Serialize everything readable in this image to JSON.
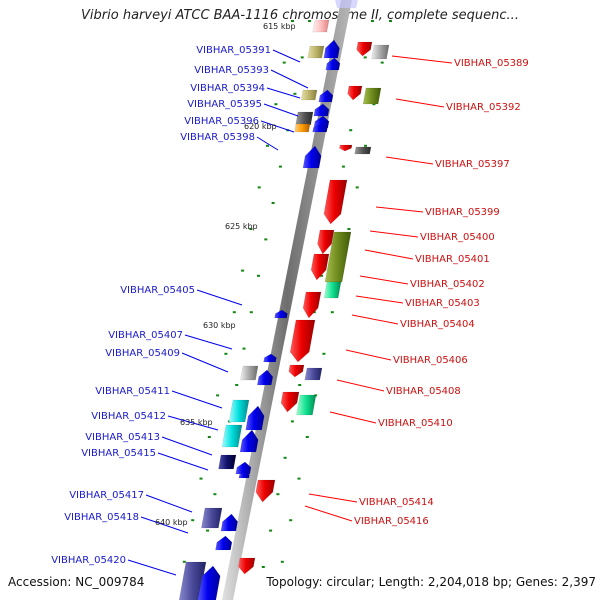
{
  "title": "Vibrio harveyi ATCC BAA-1116 chromosome II, complete sequenc...",
  "footer": {
    "accession": "Accession: NC_009784",
    "summary": "Topology: circular; Length: 2,204,018 bp; Genes: 2,397"
  },
  "scale_labels": [
    "615 kbp",
    "620 kbp",
    "625 kbp",
    "630 kbp",
    "635 kbp",
    "640 kbp"
  ],
  "colors": {
    "left_label": "#1a1acc",
    "right_label": "#cc1111",
    "plus_strand": "#ff0000",
    "minus_strand": "#0000ee",
    "backbone": "#8a8a8a",
    "tick": "#118811"
  },
  "genes_left": [
    "VIBHAR_05391",
    "VIBHAR_05393",
    "VIBHAR_05394",
    "VIBHAR_05395",
    "VIBHAR_05396",
    "VIBHAR_05398",
    "VIBHAR_05405",
    "VIBHAR_05407",
    "VIBHAR_05409",
    "VIBHAR_05411",
    "VIBHAR_05412",
    "VIBHAR_05413",
    "VIBHAR_05415",
    "VIBHAR_05417",
    "VIBHAR_05418",
    "VIBHAR_05420"
  ],
  "genes_right": [
    "VIBHAR_05389",
    "VIBHAR_05392",
    "VIBHAR_05397",
    "VIBHAR_05399",
    "VIBHAR_05400",
    "VIBHAR_05401",
    "VIBHAR_05402",
    "VIBHAR_05403",
    "VIBHAR_05404",
    "VIBHAR_05406",
    "VIBHAR_05408",
    "VIBHAR_05410",
    "VIBHAR_05414",
    "VIBHAR_05416"
  ]
}
